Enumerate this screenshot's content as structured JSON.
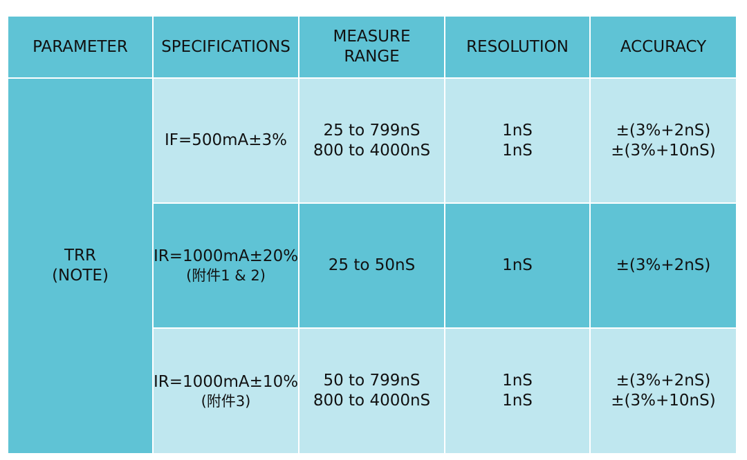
{
  "header": {
    "parameter": "PARAMETER",
    "specifications": "SPECIFICATIONS",
    "measure_range_line1": "MEASURE",
    "measure_range_line2": "RANGE",
    "resolution": "RESOLUTION",
    "accuracy": "ACCURACY"
  },
  "parameter": {
    "name": "TRR",
    "note": "(NOTE)"
  },
  "rows": [
    {
      "spec": "IF=500mA±3%",
      "spec_note": "",
      "range": [
        "25 to 799nS",
        "800 to 4000nS"
      ],
      "resolution": [
        "1nS",
        "1nS"
      ],
      "accuracy": [
        "±(3%+2nS)",
        "±(3%+10nS)"
      ]
    },
    {
      "spec": "IR=1000mA±20%",
      "spec_note": "(附件1 & 2)",
      "range": [
        "25 to 50nS"
      ],
      "resolution": [
        "1nS"
      ],
      "accuracy": [
        "±(3%+2nS)"
      ]
    },
    {
      "spec": "IR=1000mA±10%",
      "spec_note": "(附件3)",
      "range": [
        "50 to 799nS",
        "800 to 4000nS"
      ],
      "resolution": [
        "1nS",
        "1nS"
      ],
      "accuracy": [
        "±(3%+2nS)",
        "±(3%+10nS)"
      ]
    }
  ],
  "colors": {
    "header_bg": "#5fc3d5",
    "light_bg": "#bfe7ef",
    "grid": "#ffffff"
  }
}
